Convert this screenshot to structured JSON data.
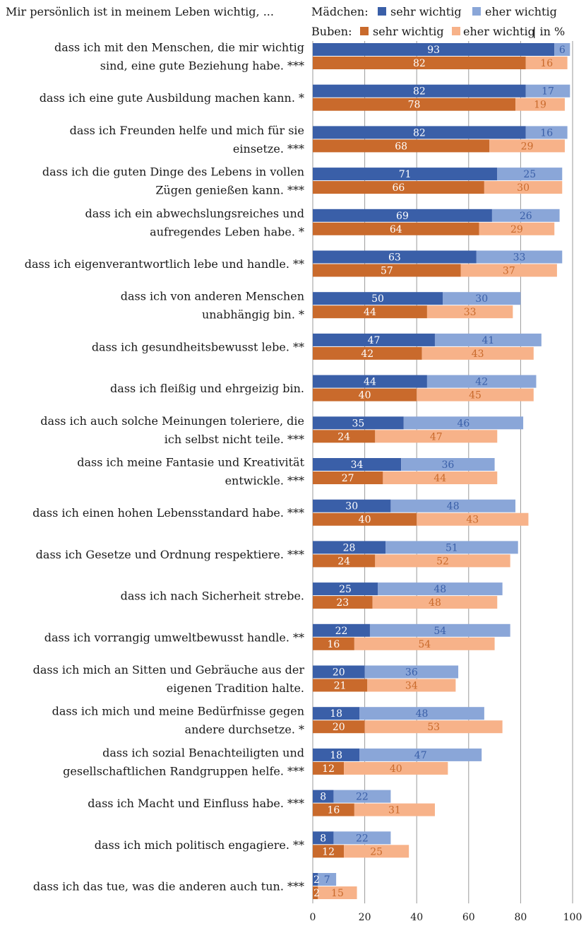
{
  "chart_data": {
    "type": "bar",
    "title": "Mir persönlich ist in meinem Leben wichtig, ...",
    "unit": "in %",
    "xlim": [
      0,
      100
    ],
    "xticks": [
      "0",
      "20",
      "40",
      "60",
      "80",
      "100"
    ],
    "grid": true,
    "legend_position": "top-right",
    "legend": {
      "maedchen_label": "Mädchen:",
      "buben_label": "Buben:",
      "unit_label": "| in %",
      "sehr": "sehr wichtig",
      "eher": "eher wichtig"
    },
    "colors": {
      "maedchen_sehr": "#3a5fa8",
      "maedchen_eher": "#8aa6d8",
      "buben_sehr": "#c96a2c",
      "buben_eher": "#f7b289",
      "grid": "#9a9a9a"
    },
    "categories": [
      [
        "dass ich mit den Menschen, die mir wichtig",
        "sind, eine gute Beziehung habe. ***"
      ],
      [
        "dass ich eine gute Ausbildung machen kann. *"
      ],
      [
        "dass ich Freunden helfe und mich für sie",
        "einsetze. ***"
      ],
      [
        "dass ich die guten Dinge des Lebens in vollen",
        "Zügen genießen kann. ***"
      ],
      [
        "dass ich ein abwechslungsreiches und",
        "aufregendes Leben habe. *"
      ],
      [
        "dass ich eigenverantwortlich lebe und handle. **"
      ],
      [
        "dass ich von anderen Menschen",
        "unabhängig bin. *"
      ],
      [
        "dass ich gesundheitsbewusst lebe. **"
      ],
      [
        "dass ich fleißig und ehrgeizig bin."
      ],
      [
        "dass ich auch solche Meinungen toleriere, die",
        "ich selbst nicht teile. ***"
      ],
      [
        "dass ich meine Fantasie und Kreativität",
        "entwickle. ***"
      ],
      [
        "dass ich einen hohen Lebensstandard habe. ***"
      ],
      [
        "dass ich Gesetze und Ordnung respektiere. ***"
      ],
      [
        "dass ich nach Sicherheit strebe."
      ],
      [
        "dass ich vorrangig umweltbewusst handle. **"
      ],
      [
        "dass ich mich an Sitten und Gebräuche aus der",
        "eigenen Tradition halte."
      ],
      [
        "dass ich mich und meine Bedürfnisse gegen",
        "andere durchsetze. *"
      ],
      [
        "dass ich sozial Benachteiligten und",
        "gesellschaftlichen Randgruppen helfe. ***"
      ],
      [
        "dass ich Macht und Einfluss habe. ***"
      ],
      [
        "dass ich mich politisch engagiere. **"
      ],
      [
        "dass ich das tue, was die anderen auch tun. ***"
      ]
    ],
    "series": [
      {
        "name": "Mädchen: sehr wichtig",
        "values": [
          93,
          82,
          82,
          71,
          69,
          63,
          50,
          47,
          44,
          35,
          34,
          30,
          28,
          25,
          22,
          20,
          18,
          18,
          8,
          8,
          2
        ]
      },
      {
        "name": "Mädchen: eher wichtig",
        "values": [
          6,
          17,
          16,
          25,
          26,
          33,
          30,
          41,
          42,
          46,
          36,
          48,
          51,
          48,
          54,
          36,
          48,
          47,
          22,
          22,
          7
        ]
      },
      {
        "name": "Buben: sehr wichtig",
        "values": [
          82,
          78,
          68,
          66,
          64,
          57,
          44,
          42,
          40,
          24,
          27,
          40,
          24,
          23,
          16,
          21,
          20,
          12,
          16,
          12,
          2
        ]
      },
      {
        "name": "Buben: eher wichtig",
        "values": [
          16,
          19,
          29,
          30,
          29,
          37,
          33,
          43,
          45,
          47,
          44,
          43,
          52,
          48,
          54,
          34,
          53,
          40,
          31,
          25,
          15
        ]
      }
    ]
  }
}
